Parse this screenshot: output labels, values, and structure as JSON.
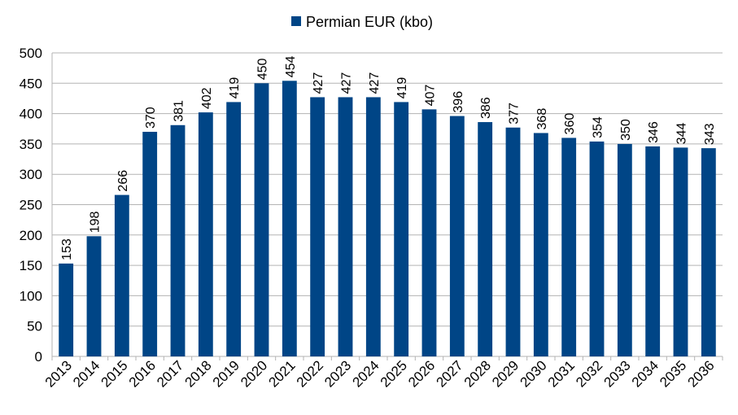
{
  "chart_data": {
    "type": "bar",
    "title": "",
    "xlabel": "",
    "ylabel": "",
    "categories": [
      "2013",
      "2014",
      "2015",
      "2016",
      "2017",
      "2018",
      "2019",
      "2020",
      "2021",
      "2022",
      "2023",
      "2024",
      "2025",
      "2026",
      "2027",
      "2028",
      "2029",
      "2030",
      "2031",
      "2032",
      "2033",
      "2034",
      "2035",
      "2036"
    ],
    "series": [
      {
        "name": "Permian EUR (kbo)",
        "color": "#004586",
        "values": [
          153,
          198,
          266,
          370,
          381,
          402,
          419,
          450,
          454,
          427,
          427,
          427,
          419,
          407,
          396,
          386,
          377,
          368,
          360,
          354,
          350,
          346,
          344,
          343
        ]
      }
    ],
    "ylim": [
      0,
      500
    ],
    "yticks": [
      0,
      50,
      100,
      150,
      200,
      250,
      300,
      350,
      400,
      450,
      500
    ],
    "grid": true,
    "legend_position": "top-center",
    "data_labels": true
  }
}
